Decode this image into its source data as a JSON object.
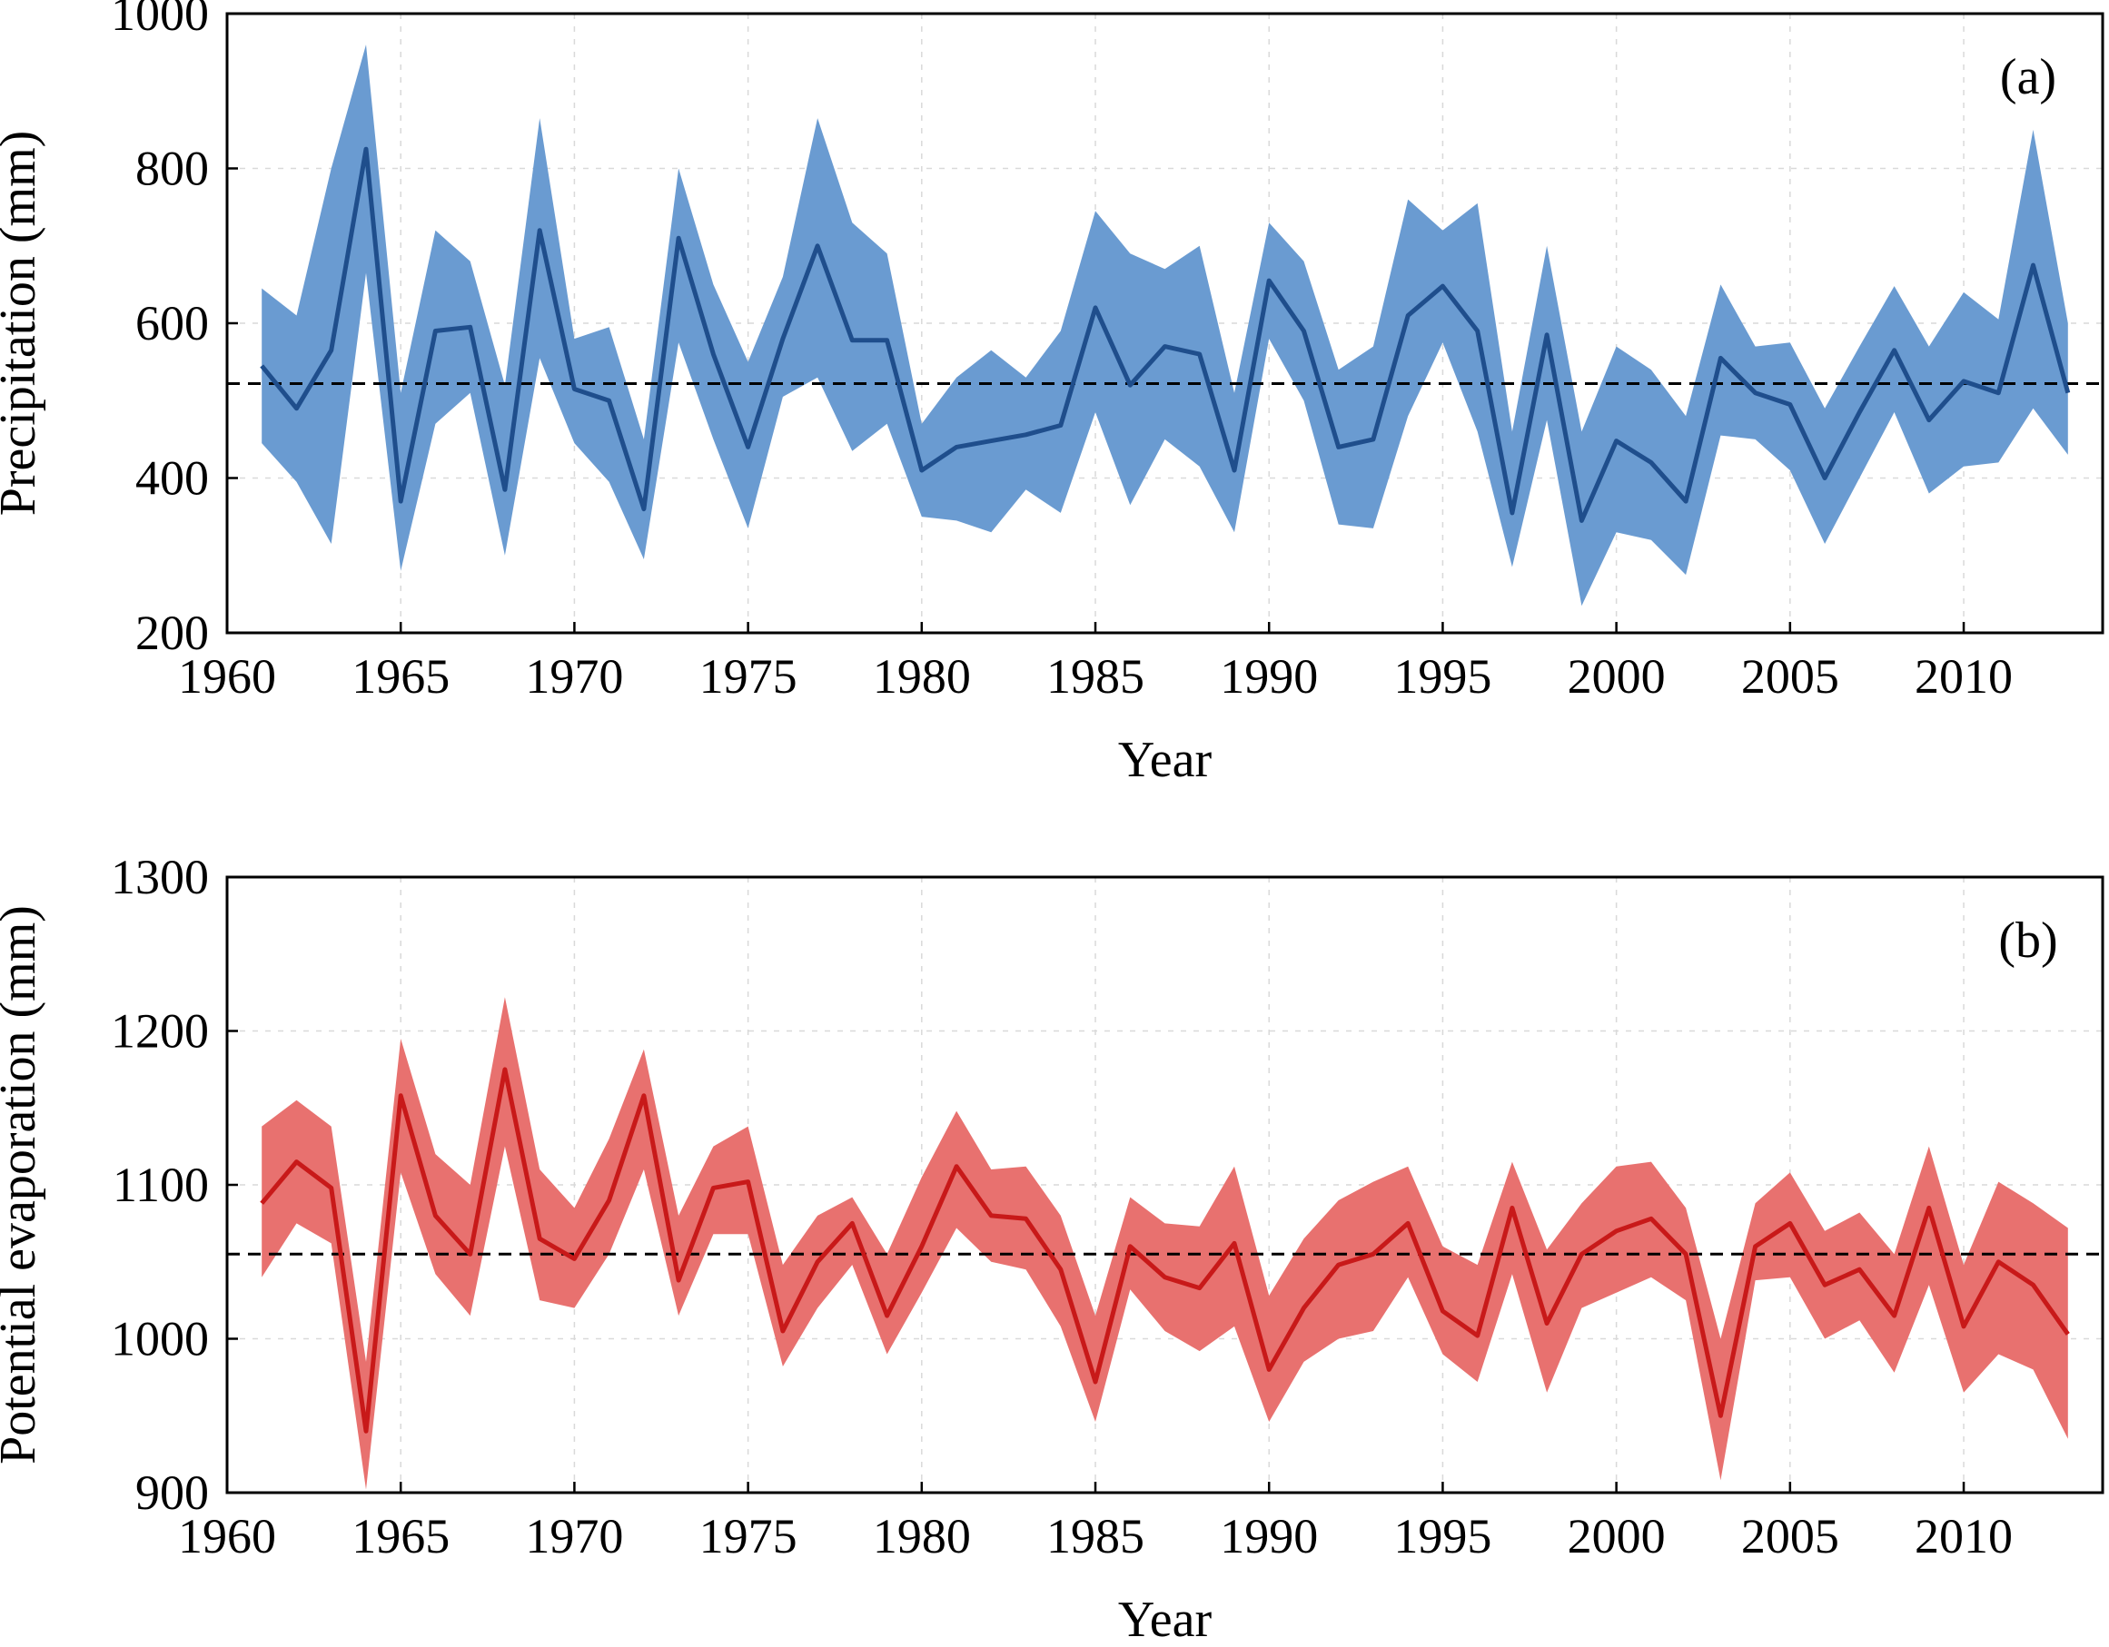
{
  "chart_data": [
    {
      "type": "line",
      "panel_label": "(a)",
      "xlabel": "Year",
      "ylabel": "Precipitation (mm)",
      "xlim": [
        1960,
        2014
      ],
      "ylim": [
        200,
        1000
      ],
      "xticks": [
        1960,
        1965,
        1970,
        1975,
        1980,
        1985,
        1990,
        1995,
        2000,
        2005,
        2010
      ],
      "yticks": [
        200,
        400,
        600,
        800,
        1000
      ],
      "grid": true,
      "colors": {
        "line": "#1f4e8c",
        "band": "#6a9bd1"
      },
      "reference_line": 522,
      "x": [
        1961,
        1962,
        1963,
        1964,
        1965,
        1966,
        1967,
        1968,
        1969,
        1970,
        1971,
        1972,
        1973,
        1974,
        1975,
        1976,
        1977,
        1978,
        1979,
        1980,
        1981,
        1982,
        1983,
        1984,
        1985,
        1986,
        1987,
        1988,
        1989,
        1990,
        1991,
        1992,
        1993,
        1994,
        1995,
        1996,
        1997,
        1998,
        1999,
        2000,
        2001,
        2002,
        2003,
        2004,
        2005,
        2006,
        2007,
        2008,
        2009,
        2010,
        2011,
        2012,
        2013
      ],
      "series": [
        {
          "role": "mean",
          "values": [
            545,
            490,
            565,
            825,
            370,
            590,
            595,
            385,
            720,
            515,
            500,
            360,
            710,
            560,
            440,
            580,
            700,
            578,
            578,
            410,
            440,
            448,
            456,
            468,
            620,
            520,
            570,
            560,
            410,
            655,
            590,
            440,
            450,
            610,
            648,
            590,
            355,
            585,
            345,
            448,
            420,
            370,
            555,
            510,
            495,
            400,
            485,
            565,
            475,
            525,
            510,
            675,
            510
          ]
        },
        {
          "role": "upper",
          "values": [
            645,
            610,
            800,
            960,
            510,
            720,
            680,
            520,
            865,
            580,
            595,
            450,
            800,
            650,
            550,
            660,
            865,
            730,
            690,
            470,
            530,
            565,
            530,
            590,
            745,
            690,
            670,
            700,
            510,
            730,
            680,
            540,
            570,
            760,
            720,
            755,
            460,
            700,
            460,
            570,
            540,
            480,
            650,
            570,
            575,
            490,
            570,
            648,
            570,
            640,
            605,
            850,
            600
          ]
        },
        {
          "role": "lower",
          "values": [
            445,
            395,
            315,
            665,
            280,
            470,
            510,
            300,
            555,
            445,
            395,
            295,
            575,
            450,
            335,
            505,
            530,
            435,
            470,
            350,
            345,
            330,
            385,
            355,
            485,
            365,
            450,
            415,
            330,
            580,
            500,
            340,
            335,
            480,
            575,
            460,
            285,
            475,
            235,
            330,
            320,
            275,
            455,
            450,
            410,
            315,
            400,
            485,
            380,
            415,
            420,
            490,
            430
          ]
        }
      ]
    },
    {
      "type": "line",
      "panel_label": "(b)",
      "xlabel": "Year",
      "ylabel": "Potential evaporation (mm)",
      "xlim": [
        1960,
        2014
      ],
      "ylim": [
        900,
        1300
      ],
      "xticks": [
        1960,
        1965,
        1970,
        1975,
        1980,
        1985,
        1990,
        1995,
        2000,
        2005,
        2010
      ],
      "yticks": [
        900,
        1000,
        1100,
        1200,
        1300
      ],
      "grid": true,
      "colors": {
        "line": "#c81919",
        "band": "#e8716f"
      },
      "reference_line": 1055,
      "x": [
        1961,
        1962,
        1963,
        1964,
        1965,
        1966,
        1967,
        1968,
        1969,
        1970,
        1971,
        1972,
        1973,
        1974,
        1975,
        1976,
        1977,
        1978,
        1979,
        1980,
        1981,
        1982,
        1983,
        1984,
        1985,
        1986,
        1987,
        1988,
        1989,
        1990,
        1991,
        1992,
        1993,
        1994,
        1995,
        1996,
        1997,
        1998,
        1999,
        2000,
        2001,
        2002,
        2003,
        2004,
        2005,
        2006,
        2007,
        2008,
        2009,
        2010,
        2011,
        2012,
        2013
      ],
      "series": [
        {
          "role": "mean",
          "values": [
            1088,
            1115,
            1098,
            940,
            1158,
            1080,
            1055,
            1175,
            1065,
            1052,
            1090,
            1158,
            1038,
            1098,
            1102,
            1005,
            1050,
            1075,
            1015,
            1060,
            1112,
            1080,
            1078,
            1045,
            972,
            1060,
            1040,
            1033,
            1062,
            980,
            1020,
            1048,
            1055,
            1075,
            1018,
            1002,
            1085,
            1010,
            1055,
            1070,
            1078,
            1055,
            950,
            1060,
            1075,
            1035,
            1045,
            1015,
            1085,
            1008,
            1050,
            1035,
            1003
          ]
        },
        {
          "role": "upper",
          "values": [
            1138,
            1155,
            1138,
            985,
            1195,
            1120,
            1100,
            1222,
            1110,
            1085,
            1130,
            1188,
            1080,
            1125,
            1138,
            1048,
            1080,
            1092,
            1055,
            1105,
            1148,
            1110,
            1112,
            1080,
            1015,
            1092,
            1075,
            1073,
            1112,
            1028,
            1065,
            1090,
            1102,
            1112,
            1060,
            1048,
            1115,
            1058,
            1088,
            1112,
            1115,
            1085,
            1000,
            1088,
            1108,
            1070,
            1082,
            1055,
            1125,
            1048,
            1102,
            1088,
            1072
          ]
        },
        {
          "role": "lower",
          "values": [
            1040,
            1075,
            1062,
            902,
            1108,
            1042,
            1015,
            1125,
            1025,
            1020,
            1055,
            1110,
            1015,
            1068,
            1068,
            982,
            1020,
            1048,
            990,
            1030,
            1072,
            1050,
            1045,
            1008,
            946,
            1032,
            1005,
            992,
            1008,
            946,
            985,
            1000,
            1005,
            1040,
            990,
            972,
            1042,
            965,
            1020,
            1030,
            1040,
            1025,
            908,
            1038,
            1040,
            1000,
            1012,
            978,
            1035,
            965,
            990,
            980,
            935
          ]
        }
      ]
    }
  ]
}
